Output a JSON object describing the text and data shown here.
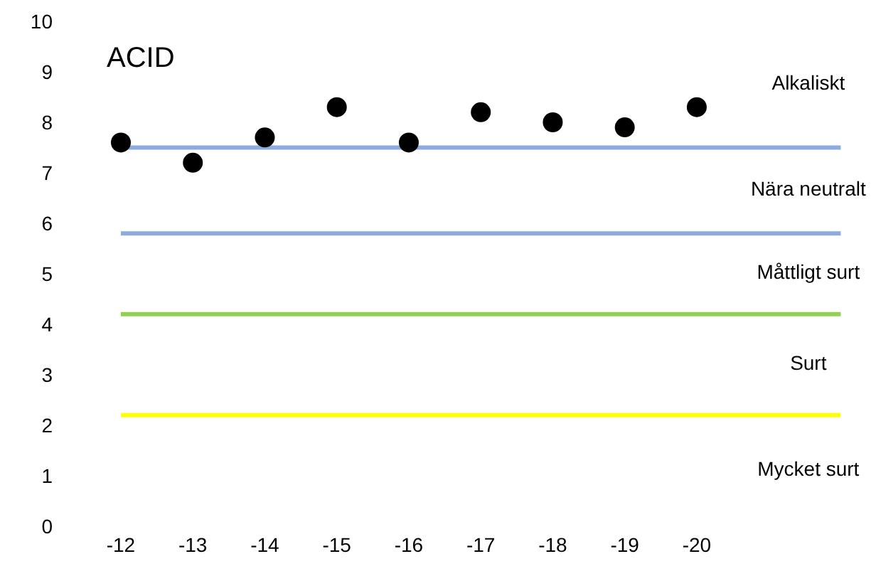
{
  "chart_data": {
    "type": "scatter",
    "title": "ACID",
    "categories": [
      "-12",
      "-13",
      "-14",
      "-15",
      "-16",
      "-17",
      "-18",
      "-19",
      "-20",
      null,
      null
    ],
    "series": [
      {
        "color": "#000000",
        "values": [
          7.6,
          7.2,
          7.7,
          8.3,
          7.6,
          8.2,
          8.0,
          7.9,
          8.3,
          null,
          null
        ]
      }
    ],
    "marker": "circle",
    "ylim": [
      0,
      10
    ],
    "yticks": [
      0,
      1,
      2,
      3,
      4,
      5,
      6,
      7,
      8,
      9,
      10
    ],
    "grid": false,
    "legend": false,
    "ref_lines": [
      {
        "axis": "y",
        "value": 7.5,
        "color": "#8faadc"
      },
      {
        "axis": "y",
        "value": 5.8,
        "color": "#8faadc"
      },
      {
        "axis": "y",
        "value": 4.2,
        "color": "#92d050"
      },
      {
        "axis": "y",
        "value": 2.2,
        "color": "#ffff00"
      }
    ],
    "annotations": [
      "Alkaliskt",
      "Nära neutralt",
      "Måttligt surt",
      "Surt",
      "Mycket surt"
    ]
  }
}
